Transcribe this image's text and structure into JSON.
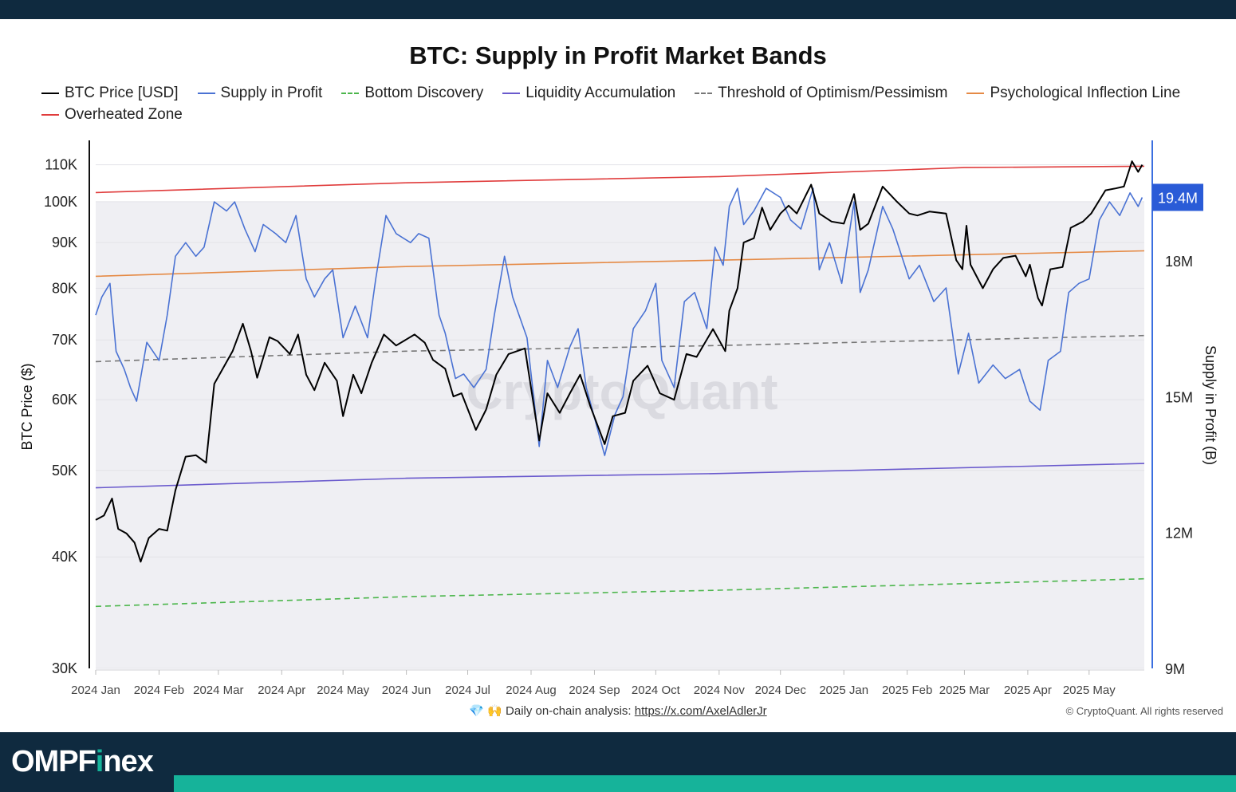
{
  "header": {
    "title": "BTC: Supply in Profit Market Bands"
  },
  "footer": {
    "icons": "💎 🙌",
    "analysis_label": "Daily on-chain analysis:",
    "analysis_url": "https://x.com/AxelAdlerJr",
    "copyright": "© CryptoQuant. All rights reserved",
    "watermark": "CryptoQuant"
  },
  "brand": {
    "prefix": "OMPF",
    "accent": "i",
    "suffix": "nex"
  },
  "chart_data": {
    "type": "line",
    "title": "BTC: Supply in Profit Market Bands",
    "ylabel_left": "BTC Price ($)",
    "ylabel_right": "Supply in Profit (B)",
    "left_axis": {
      "scale": "log",
      "ylim": [
        30000,
        115000
      ],
      "ticks": [
        30000,
        40000,
        50000,
        60000,
        70000,
        80000,
        90000,
        100000,
        110000
      ],
      "tick_labels": [
        "30K",
        "40K",
        "50K",
        "60K",
        "70K",
        "80K",
        "90K",
        "100K",
        "110K"
      ]
    },
    "right_axis": {
      "scale": "linear",
      "ylim": [
        9000000,
        20500000
      ],
      "ticks": [
        9000000,
        12000000,
        15000000,
        18000000
      ],
      "tick_labels": [
        "9M",
        "12M",
        "15M",
        "18M"
      ],
      "current_value_label": "19.4M",
      "current_value": 19400000
    },
    "x_tick_labels": [
      "2024 Jan",
      "2024 Feb",
      "2024 Mar",
      "2024 Apr",
      "2024 May",
      "2024 Jun",
      "2024 Jul",
      "2024 Aug",
      "2024 Sep",
      "2024 Oct",
      "2024 Nov",
      "2024 Dec",
      "2025 Jan",
      "2025 Feb",
      "2025 Mar",
      "2025 Apr",
      "2025 May"
    ],
    "x_tick_dates": [
      "2024-01-01",
      "2024-02-01",
      "2024-03-01",
      "2024-04-01",
      "2024-05-01",
      "2024-06-01",
      "2024-07-01",
      "2024-08-01",
      "2024-09-01",
      "2024-10-01",
      "2024-11-01",
      "2024-12-01",
      "2025-01-01",
      "2025-02-01",
      "2025-03-01",
      "2025-04-01",
      "2025-05-01"
    ],
    "x_range": [
      "2024-01-01",
      "2025-05-28"
    ],
    "legend_position": "top-left",
    "grid": true,
    "series": [
      {
        "name": "BTC Price [USD]",
        "axis": "left",
        "color": "#000000",
        "style": "solid",
        "points": [
          [
            "2024-01-01",
            44000
          ],
          [
            "2024-01-05",
            44500
          ],
          [
            "2024-01-09",
            46500
          ],
          [
            "2024-01-12",
            43000
          ],
          [
            "2024-01-16",
            42500
          ],
          [
            "2024-01-20",
            41500
          ],
          [
            "2024-01-23",
            39500
          ],
          [
            "2024-01-27",
            42000
          ],
          [
            "2024-02-01",
            43000
          ],
          [
            "2024-02-05",
            42800
          ],
          [
            "2024-02-09",
            47500
          ],
          [
            "2024-02-14",
            51800
          ],
          [
            "2024-02-19",
            52000
          ],
          [
            "2024-02-24",
            51000
          ],
          [
            "2024-02-28",
            62500
          ],
          [
            "2024-03-04",
            65500
          ],
          [
            "2024-03-08",
            68000
          ],
          [
            "2024-03-13",
            73000
          ],
          [
            "2024-03-17",
            68000
          ],
          [
            "2024-03-20",
            63500
          ],
          [
            "2024-03-26",
            70500
          ],
          [
            "2024-03-30",
            69800
          ],
          [
            "2024-04-05",
            67500
          ],
          [
            "2024-04-09",
            71000
          ],
          [
            "2024-04-13",
            64000
          ],
          [
            "2024-04-17",
            61500
          ],
          [
            "2024-04-22",
            66000
          ],
          [
            "2024-04-28",
            63000
          ],
          [
            "2024-05-01",
            57500
          ],
          [
            "2024-05-06",
            64000
          ],
          [
            "2024-05-10",
            61000
          ],
          [
            "2024-05-15",
            66000
          ],
          [
            "2024-05-21",
            71000
          ],
          [
            "2024-05-27",
            69000
          ],
          [
            "2024-06-05",
            71000
          ],
          [
            "2024-06-10",
            69500
          ],
          [
            "2024-06-14",
            66500
          ],
          [
            "2024-06-20",
            65000
          ],
          [
            "2024-06-24",
            60500
          ],
          [
            "2024-06-28",
            61000
          ],
          [
            "2024-07-05",
            55500
          ],
          [
            "2024-07-10",
            58500
          ],
          [
            "2024-07-15",
            64000
          ],
          [
            "2024-07-21",
            67500
          ],
          [
            "2024-07-29",
            68500
          ],
          [
            "2024-08-05",
            54000
          ],
          [
            "2024-08-09",
            61000
          ],
          [
            "2024-08-15",
            58000
          ],
          [
            "2024-08-20",
            61000
          ],
          [
            "2024-08-25",
            64000
          ],
          [
            "2024-08-30",
            59000
          ],
          [
            "2024-09-06",
            53500
          ],
          [
            "2024-09-10",
            57500
          ],
          [
            "2024-09-16",
            58000
          ],
          [
            "2024-09-20",
            63000
          ],
          [
            "2024-09-27",
            65500
          ],
          [
            "2024-10-03",
            61000
          ],
          [
            "2024-10-10",
            60000
          ],
          [
            "2024-10-16",
            67500
          ],
          [
            "2024-10-21",
            67000
          ],
          [
            "2024-10-29",
            72000
          ],
          [
            "2024-11-04",
            68000
          ],
          [
            "2024-11-06",
            75500
          ],
          [
            "2024-11-10",
            80000
          ],
          [
            "2024-11-13",
            90000
          ],
          [
            "2024-11-18",
            91000
          ],
          [
            "2024-11-22",
            98500
          ],
          [
            "2024-11-26",
            93000
          ],
          [
            "2024-12-01",
            97000
          ],
          [
            "2024-12-05",
            99000
          ],
          [
            "2024-12-09",
            97000
          ],
          [
            "2024-12-16",
            104500
          ],
          [
            "2024-12-20",
            97000
          ],
          [
            "2024-12-26",
            95000
          ],
          [
            "2025-01-01",
            94500
          ],
          [
            "2025-01-06",
            102000
          ],
          [
            "2025-01-09",
            93000
          ],
          [
            "2025-01-13",
            94500
          ],
          [
            "2025-01-20",
            104000
          ],
          [
            "2025-01-27",
            100000
          ],
          [
            "2025-02-02",
            97000
          ],
          [
            "2025-02-06",
            96500
          ],
          [
            "2025-02-12",
            97500
          ],
          [
            "2025-02-20",
            97000
          ],
          [
            "2025-02-25",
            86000
          ],
          [
            "2025-02-28",
            84000
          ],
          [
            "2025-03-02",
            94000
          ],
          [
            "2025-03-04",
            85000
          ],
          [
            "2025-03-10",
            80000
          ],
          [
            "2025-03-15",
            84000
          ],
          [
            "2025-03-20",
            86500
          ],
          [
            "2025-03-26",
            87000
          ],
          [
            "2025-03-31",
            82500
          ],
          [
            "2025-04-02",
            85000
          ],
          [
            "2025-04-06",
            78000
          ],
          [
            "2025-04-08",
            76500
          ],
          [
            "2025-04-12",
            84000
          ],
          [
            "2025-04-18",
            84500
          ],
          [
            "2025-04-22",
            93500
          ],
          [
            "2025-04-28",
            95000
          ],
          [
            "2025-05-02",
            97000
          ],
          [
            "2025-05-09",
            103000
          ],
          [
            "2025-05-14",
            103500
          ],
          [
            "2025-05-18",
            104000
          ],
          [
            "2025-05-22",
            111000
          ],
          [
            "2025-05-25",
            108000
          ],
          [
            "2025-05-27",
            110000
          ]
        ]
      },
      {
        "name": "Supply in Profit",
        "axis": "right",
        "color": "#4a72d3",
        "style": "solid",
        "points": [
          [
            "2024-01-01",
            16800000
          ],
          [
            "2024-01-04",
            17200000
          ],
          [
            "2024-01-08",
            17500000
          ],
          [
            "2024-01-11",
            16000000
          ],
          [
            "2024-01-15",
            15600000
          ],
          [
            "2024-01-18",
            15200000
          ],
          [
            "2024-01-21",
            14900000
          ],
          [
            "2024-01-26",
            16200000
          ],
          [
            "2024-02-01",
            15800000
          ],
          [
            "2024-02-05",
            16800000
          ],
          [
            "2024-02-09",
            18100000
          ],
          [
            "2024-02-14",
            18400000
          ],
          [
            "2024-02-19",
            18100000
          ],
          [
            "2024-02-23",
            18300000
          ],
          [
            "2024-02-28",
            19300000
          ],
          [
            "2024-03-05",
            19100000
          ],
          [
            "2024-03-09",
            19300000
          ],
          [
            "2024-03-14",
            18700000
          ],
          [
            "2024-03-19",
            18200000
          ],
          [
            "2024-03-23",
            18800000
          ],
          [
            "2024-03-29",
            18600000
          ],
          [
            "2024-04-03",
            18400000
          ],
          [
            "2024-04-08",
            19000000
          ],
          [
            "2024-04-13",
            17600000
          ],
          [
            "2024-04-17",
            17200000
          ],
          [
            "2024-04-22",
            17600000
          ],
          [
            "2024-04-26",
            17800000
          ],
          [
            "2024-05-01",
            16300000
          ],
          [
            "2024-05-07",
            17000000
          ],
          [
            "2024-05-13",
            16300000
          ],
          [
            "2024-05-17",
            17600000
          ],
          [
            "2024-05-22",
            19000000
          ],
          [
            "2024-05-27",
            18600000
          ],
          [
            "2024-06-03",
            18400000
          ],
          [
            "2024-06-07",
            18600000
          ],
          [
            "2024-06-12",
            18500000
          ],
          [
            "2024-06-17",
            16800000
          ],
          [
            "2024-06-20",
            16400000
          ],
          [
            "2024-06-25",
            15400000
          ],
          [
            "2024-06-29",
            15500000
          ],
          [
            "2024-07-04",
            15200000
          ],
          [
            "2024-07-10",
            15600000
          ],
          [
            "2024-07-14",
            16800000
          ],
          [
            "2024-07-19",
            18100000
          ],
          [
            "2024-07-23",
            17200000
          ],
          [
            "2024-07-30",
            16300000
          ],
          [
            "2024-08-05",
            13900000
          ],
          [
            "2024-08-09",
            15800000
          ],
          [
            "2024-08-14",
            15200000
          ],
          [
            "2024-08-20",
            16100000
          ],
          [
            "2024-08-24",
            16500000
          ],
          [
            "2024-08-28",
            15200000
          ],
          [
            "2024-09-06",
            13700000
          ],
          [
            "2024-09-11",
            14600000
          ],
          [
            "2024-09-15",
            15000000
          ],
          [
            "2024-09-20",
            16500000
          ],
          [
            "2024-09-26",
            16900000
          ],
          [
            "2024-10-01",
            17500000
          ],
          [
            "2024-10-04",
            15800000
          ],
          [
            "2024-10-10",
            15200000
          ],
          [
            "2024-10-15",
            17100000
          ],
          [
            "2024-10-20",
            17300000
          ],
          [
            "2024-10-26",
            16500000
          ],
          [
            "2024-10-30",
            18300000
          ],
          [
            "2024-11-03",
            17900000
          ],
          [
            "2024-11-06",
            19200000
          ],
          [
            "2024-11-10",
            19600000
          ],
          [
            "2024-11-13",
            18800000
          ],
          [
            "2024-11-18",
            19100000
          ],
          [
            "2024-11-24",
            19600000
          ],
          [
            "2024-12-01",
            19400000
          ],
          [
            "2024-12-06",
            18900000
          ],
          [
            "2024-12-11",
            18700000
          ],
          [
            "2024-12-17",
            19600000
          ],
          [
            "2024-12-20",
            17800000
          ],
          [
            "2024-12-25",
            18400000
          ],
          [
            "2024-12-31",
            17500000
          ],
          [
            "2025-01-06",
            19300000
          ],
          [
            "2025-01-09",
            17300000
          ],
          [
            "2025-01-13",
            17800000
          ],
          [
            "2025-01-20",
            19200000
          ],
          [
            "2025-01-25",
            18700000
          ],
          [
            "2025-02-02",
            17600000
          ],
          [
            "2025-02-07",
            17900000
          ],
          [
            "2025-02-14",
            17100000
          ],
          [
            "2025-02-20",
            17400000
          ],
          [
            "2025-02-26",
            15500000
          ],
          [
            "2025-03-03",
            16400000
          ],
          [
            "2025-03-08",
            15300000
          ],
          [
            "2025-03-15",
            15700000
          ],
          [
            "2025-03-21",
            15400000
          ],
          [
            "2025-03-28",
            15600000
          ],
          [
            "2025-04-02",
            14900000
          ],
          [
            "2025-04-07",
            14700000
          ],
          [
            "2025-04-11",
            15800000
          ],
          [
            "2025-04-17",
            16000000
          ],
          [
            "2025-04-21",
            17300000
          ],
          [
            "2025-04-26",
            17500000
          ],
          [
            "2025-05-01",
            17600000
          ],
          [
            "2025-05-06",
            18900000
          ],
          [
            "2025-05-11",
            19300000
          ],
          [
            "2025-05-16",
            19000000
          ],
          [
            "2025-05-21",
            19500000
          ],
          [
            "2025-05-25",
            19200000
          ],
          [
            "2025-05-27",
            19400000
          ]
        ]
      },
      {
        "name": "Bottom Discovery",
        "axis": "left",
        "color": "#4cb64c",
        "style": "dashed",
        "points": [
          [
            "2024-01-01",
            35200
          ],
          [
            "2024-06-01",
            36100
          ],
          [
            "2024-11-01",
            36700
          ],
          [
            "2025-05-28",
            37800
          ]
        ]
      },
      {
        "name": "Liquidity Accumulation",
        "axis": "left",
        "color": "#6a5acd",
        "style": "solid",
        "points": [
          [
            "2024-01-01",
            47800
          ],
          [
            "2024-06-01",
            49000
          ],
          [
            "2024-11-01",
            49600
          ],
          [
            "2025-05-28",
            50900
          ]
        ]
      },
      {
        "name": "Threshold of Optimism/Pessimism",
        "axis": "left",
        "color": "#777777",
        "style": "dashed",
        "points": [
          [
            "2024-01-01",
            66200
          ],
          [
            "2024-06-01",
            68000
          ],
          [
            "2024-11-01",
            69000
          ],
          [
            "2025-05-28",
            70800
          ]
        ]
      },
      {
        "name": "Psychological Inflection Line",
        "axis": "left",
        "color": "#e58a45",
        "style": "solid",
        "points": [
          [
            "2024-01-01",
            82500
          ],
          [
            "2024-06-01",
            84600
          ],
          [
            "2024-11-01",
            86000
          ],
          [
            "2025-05-28",
            88100
          ]
        ]
      },
      {
        "name": "Overheated Zone",
        "axis": "left",
        "color": "#e03c3c",
        "style": "solid",
        "points": [
          [
            "2024-01-01",
            102400
          ],
          [
            "2024-06-01",
            105000
          ],
          [
            "2024-11-01",
            106700
          ],
          [
            "2025-03-01",
            109200
          ],
          [
            "2025-05-28",
            109600
          ]
        ]
      }
    ]
  }
}
